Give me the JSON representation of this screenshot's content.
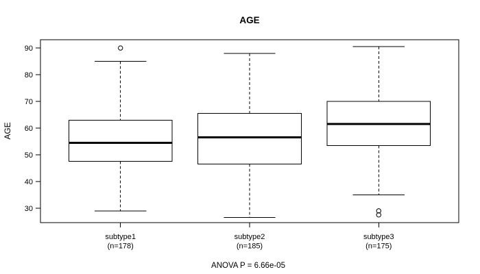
{
  "chart_data": {
    "type": "boxplot",
    "title": "AGE",
    "ylabel": "AGE",
    "xlabel": "",
    "annotation": "ANOVA P = 6.66e-05",
    "yticks": [
      30,
      40,
      50,
      60,
      70,
      80,
      90
    ],
    "ylim": [
      24.6,
      93.1
    ],
    "xlim": [
      0.38,
      3.62
    ],
    "grid": false,
    "box_width": 0.8,
    "staple_width": 0.4,
    "colors": {
      "stroke": "#000000",
      "box_fill": "#ffffff",
      "background": "#ffffff"
    },
    "groups": [
      {
        "label": "subtype1",
        "count_label": "(n=178)",
        "n": 178,
        "position": 1,
        "whisker_low": 29,
        "q1": 47.5,
        "median": 54.5,
        "q3": 63,
        "whisker_high": 85,
        "outliers": [
          90
        ]
      },
      {
        "label": "subtype2",
        "count_label": "(n=185)",
        "n": 185,
        "position": 2,
        "whisker_low": 26.5,
        "q1": 46.5,
        "median": 56.5,
        "q3": 65.5,
        "whisker_high": 88,
        "outliers": []
      },
      {
        "label": "subtype3",
        "count_label": "(n=175)",
        "n": 175,
        "position": 3,
        "whisker_low": 35,
        "q1": 53.5,
        "median": 61.5,
        "q3": 70,
        "whisker_high": 90.5,
        "outliers": [
          29,
          27.5
        ]
      }
    ]
  }
}
